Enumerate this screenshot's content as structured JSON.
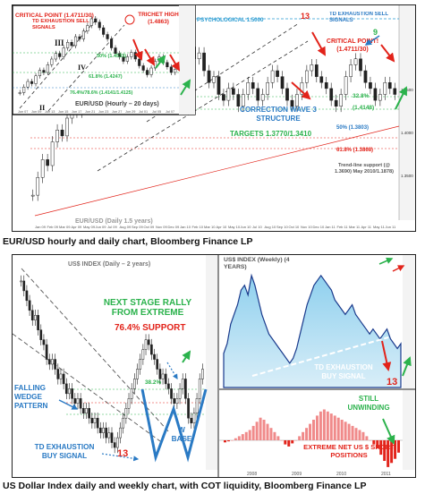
{
  "chart_data": [
    {
      "type": "candlestick",
      "title": "EUR/USD (Daily 1.5 years)",
      "labels": {
        "psychological": "PSYCHOLOGICAL 1.5000",
        "td_exhaustion_top": "TD EXHAUSTION SELL SIGNALS",
        "count_13": "13",
        "count_9": "9",
        "critical_point": "CRITICAL POINT! (1.4711/30)",
        "pct_328": "32.8%",
        "level_1": "(1.4148)",
        "correction": "CORRECTION WAVE 3 STRUCTURE",
        "targets": "TARGETS 1.3770/1.3410",
        "pct_50": "50% (1.3803)",
        "pct_618": "61.8% (1.3868)",
        "trendline": "Trend-line support (@ 1.3690) May 2010/1.1878)"
      },
      "x_ticks": [
        "Jan 09",
        "Feb 09",
        "Mar 09",
        "Apr 09",
        "May 09",
        "Jun 09",
        "Jul 09",
        "Aug 09",
        "Sep 09",
        "Oct 09",
        "Nov 09",
        "Dec 09",
        "Jan 10",
        "Feb 10",
        "Mar 10",
        "Apr 10",
        "May 10",
        "Jun 10",
        "Jul 10",
        "Aug 10",
        "Sep 10",
        "Oct 10",
        "Nov 10",
        "Dec 10",
        "Jan 11",
        "Feb 11",
        "Mar 11",
        "Apr 11",
        "May 11",
        "Jun 11"
      ],
      "y_ticks": [
        "1.4500",
        "1.4000",
        "1.3500"
      ],
      "closes": [
        1.25,
        1.28,
        1.31,
        1.3,
        1.34,
        1.36,
        1.35,
        1.38,
        1.4,
        1.39,
        1.42,
        1.44,
        1.43,
        1.46,
        1.45,
        1.48,
        1.47,
        1.5,
        1.49,
        1.46,
        1.47,
        1.44,
        1.46,
        1.43,
        1.45,
        1.47,
        1.46,
        1.48,
        1.49,
        1.47,
        1.5,
        1.52,
        1.5,
        1.48,
        1.49,
        1.46,
        1.44,
        1.45,
        1.42,
        1.41,
        1.43,
        1.42,
        1.4,
        1.42,
        1.44,
        1.43,
        1.41,
        1.42,
        1.44,
        1.46,
        1.45,
        1.43,
        1.41,
        1.4,
        1.42,
        1.44,
        1.46,
        1.47,
        1.45,
        1.44,
        1.43,
        1.41,
        1.4,
        1.42,
        1.45,
        1.47,
        1.48,
        1.46,
        1.44,
        1.43,
        1.41,
        1.42,
        1.44,
        1.43,
        1.42
      ],
      "inset": {
        "title": "EUR/USD (Hourly – 20 days)",
        "labels": {
          "critical_point": "CRITICAL POINT (1.4711/30)",
          "td_exhaustion": "TD EXHAUSTION SELL SIGNALS",
          "trichet_high": "TRICHET HIGH (1.4863)",
          "wave_III": "III",
          "wave_IV": "IV",
          "wave_II": "II",
          "pct_50": "50% (1.4533)",
          "pct_618": "61.8% (1.4247)",
          "pct_764": "76.4%/78.6% (1.4141/1.4125)"
        },
        "x_ticks": [
          "Jun 07",
          "Jun 09",
          "Jun 13",
          "Jun 15",
          "Jun 17",
          "Jun 21",
          "Jun 23",
          "Jun 27",
          "Jun 29",
          "Jul 01",
          "Jul 05",
          "Jul 07"
        ],
        "closes": [
          1.42,
          1.425,
          1.43,
          1.428,
          1.435,
          1.44,
          1.438,
          1.445,
          1.45,
          1.455,
          1.452,
          1.46,
          1.465,
          1.462,
          1.47,
          1.468,
          1.475,
          1.48,
          1.486,
          1.483,
          1.478,
          1.472,
          1.468,
          1.46,
          1.455,
          1.452,
          1.448,
          1.452,
          1.456,
          1.45,
          1.444,
          1.44,
          1.436,
          1.442,
          1.448,
          1.452,
          1.447,
          1.443,
          1.438,
          1.441
        ]
      }
    },
    {
      "type": "candlestick",
      "title": "US$ INDEX (Daily – 2 years)",
      "labels": {
        "next_stage": "NEXT STAGE RALLY FROM EXTREME",
        "support": "76.4% SUPPORT",
        "pct_382": "38.2%",
        "falling_wedge": "FALLING WEDGE PATTERN",
        "w_base": "W BASE",
        "td_exhaustion": "TD EXHAUSTION BUY SIGNAL",
        "count_13": "13"
      },
      "closes": [
        88,
        87,
        86,
        85,
        84,
        84.5,
        83,
        82,
        81.5,
        80,
        79.5,
        80,
        79,
        78,
        78.5,
        77.5,
        76.5,
        77,
        76,
        75.5,
        76,
        75,
        74.5,
        75,
        74,
        73.5,
        74,
        73,
        72.5,
        73,
        72,
        72.5,
        71.5,
        71,
        72,
        73,
        74,
        75,
        76,
        77,
        78,
        79,
        80,
        81,
        82,
        81.5,
        80.5,
        80,
        79,
        78,
        78.5,
        77.5,
        77,
        76,
        75.5,
        76,
        77,
        78,
        76,
        74,
        73.5,
        74.5,
        76,
        78,
        79
      ]
    },
    {
      "type": "area",
      "title": "US$ INDEX (Weekly) (4 YEARS)",
      "labels": {
        "td_exhaustion": "TD EXHAUSTION BUY SIGNAL",
        "count_13": "13"
      },
      "x_ticks": [
        "2008",
        "2009",
        "2010",
        "2011"
      ],
      "values": [
        72,
        74,
        78,
        80,
        82,
        85,
        86,
        84,
        88,
        86,
        83,
        80,
        78,
        76,
        75,
        74,
        73,
        72,
        71,
        70,
        71,
        73,
        76,
        79,
        82,
        84,
        86,
        87,
        88,
        87,
        86,
        85,
        83,
        82,
        81,
        80,
        81,
        82,
        80,
        79,
        78,
        77,
        76,
        77,
        76,
        75,
        76,
        77,
        75,
        74,
        73,
        74
      ]
    },
    {
      "type": "bar",
      "title": "COT liquidity",
      "labels": {
        "still_unwinding": "STILL UNWINDING",
        "extreme": "EXTREME NET US $ SHORT POSITIONS"
      },
      "values": [
        -2,
        -1,
        0,
        2,
        4,
        6,
        8,
        10,
        14,
        18,
        22,
        20,
        16,
        12,
        8,
        4,
        0,
        -4,
        -6,
        -3,
        0,
        4,
        8,
        12,
        16,
        20,
        24,
        28,
        30,
        28,
        26,
        24,
        22,
        20,
        18,
        16,
        14,
        12,
        10,
        8,
        4,
        0,
        -4,
        -8,
        -14,
        -20,
        -26,
        -22,
        -18,
        -12
      ]
    }
  ],
  "captions": {
    "top": "EUR/USD hourly and daily chart, Bloomberg Finance LP",
    "bottom": "US Dollar Index daily and weekly chart, with COT liquidity, Bloomberg Finance LP"
  }
}
